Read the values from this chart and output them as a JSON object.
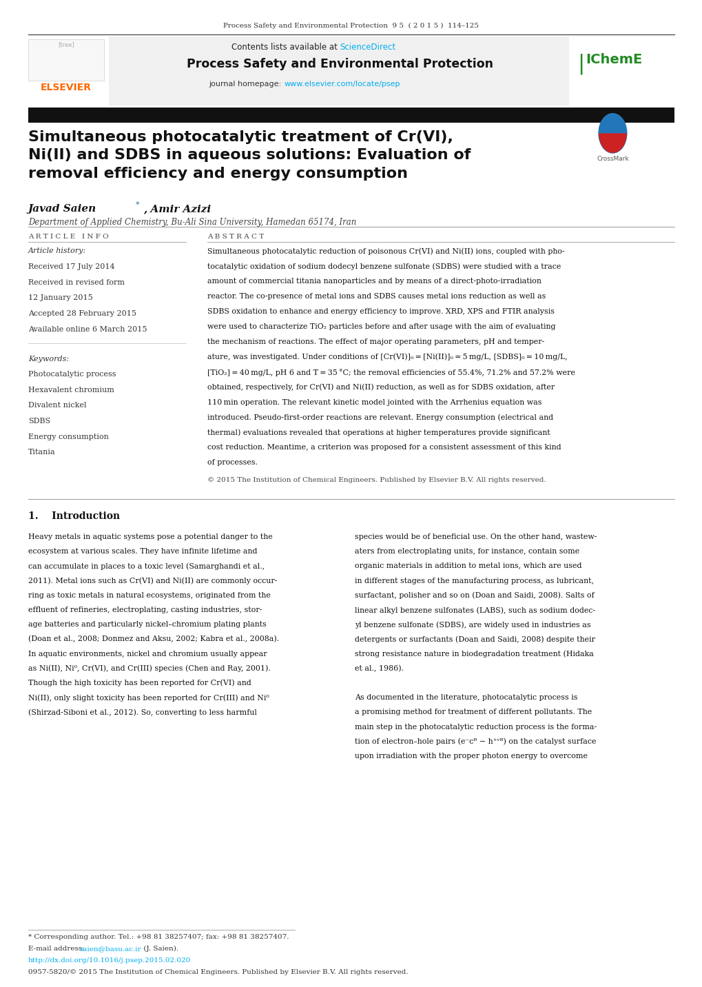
{
  "page_width": 10.2,
  "page_height": 14.32,
  "bg_color": "#ffffff",
  "journal_header": "Process Safety and Environmental Protection  9 5  ( 2 0 1 5 )  114–125",
  "science_direct": "ScienceDirect",
  "journal_name": "Process Safety and Environmental Protection",
  "journal_url": "www.elsevier.com/locate/psep",
  "elsevier_color": "#FF6600",
  "elsevier_text": "ELSEVIER",
  "scidir_color": "#00AEEF",
  "icheme_color": "#228B22",
  "paper_title": "Simultaneous photocatalytic treatment of Cr(VI),\nNi(II) and SDBS in aqueous solutions: Evaluation of\nremoval efficiency and energy consumption",
  "article_info_header": "A R T I C L E   I N F O",
  "abstract_header": "A B S T R A C T",
  "article_history_label": "Article history:",
  "history_items": [
    "Received 17 July 2014",
    "Received in revised form",
    "12 January 2015",
    "Accepted 28 February 2015",
    "Available online 6 March 2015"
  ],
  "keywords_label": "Keywords:",
  "keywords": [
    "Photocatalytic process",
    "Hexavalent chromium",
    "Divalent nickel",
    "SDBS",
    "Energy consumption",
    "Titania"
  ],
  "abstract_lines": [
    "Simultaneous photocatalytic reduction of poisonous Cr(VI) and Ni(II) ions, coupled with pho-",
    "tocatalytic oxidation of sodium dodecyl benzene sulfonate (SDBS) were studied with a trace",
    "amount of commercial titania nanoparticles and by means of a direct-photo-irradiation",
    "reactor. The co-presence of metal ions and SDBS causes metal ions reduction as well as",
    "SDBS oxidation to enhance and energy efficiency to improve. XRD, XPS and FTIR analysis",
    "were used to characterize TiO₂ particles before and after usage with the aim of evaluating",
    "the mechanism of reactions. The effect of major operating parameters, pH and temper-",
    "ature, was investigated. Under conditions of [Cr(VI)]₀ = [Ni(II)]₀ = 5 mg/L, [SDBS]₀ = 10 mg/L,",
    "[TiO₂] = 40 mg/L, pH 6 and T = 35 °C; the removal efficiencies of 55.4%, 71.2% and 57.2% were",
    "obtained, respectively, for Cr(VI) and Ni(II) reduction, as well as for SDBS oxidation, after",
    "110 min operation. The relevant kinetic model jointed with the Arrhenius equation was",
    "introduced. Pseudo-first-order reactions are relevant. Energy consumption (electrical and",
    "thermal) evaluations revealed that operations at higher temperatures provide significant",
    "cost reduction. Meantime, a criterion was proposed for a consistent assessment of this kind",
    "of processes."
  ],
  "copyright_text": "© 2015 The Institution of Chemical Engineers. Published by Elsevier B.V. All rights reserved.",
  "intro_heading": "1.    Introduction",
  "intro_col1_lines": [
    "Heavy metals in aquatic systems pose a potential danger to the",
    "ecosystem at various scales. They have infinite lifetime and",
    "can accumulate in places to a toxic level (Samarghandi et al.,",
    "2011). Metal ions such as Cr(VI) and Ni(II) are commonly occur-",
    "ring as toxic metals in natural ecosystems, originated from the",
    "effluent of refineries, electroplating, casting industries, stor-",
    "age batteries and particularly nickel–chromium plating plants",
    "(Doan et al., 2008; Donmez and Aksu, 2002; Kabra et al., 2008a).",
    "In aquatic environments, nickel and chromium usually appear",
    "as Ni(II), Ni⁰, Cr(VI), and Cr(III) species (Chen and Ray, 2001).",
    "Though the high toxicity has been reported for Cr(VI) and",
    "Ni(II), only slight toxicity has been reported for Cr(III) and Ni⁰",
    "(Shirzad-Siboni et al., 2012). So, converting to less harmful"
  ],
  "intro_col2_lines": [
    "species would be of beneficial use. On the other hand, wastew-",
    "aters from electroplating units, for instance, contain some",
    "organic materials in addition to metal ions, which are used",
    "in different stages of the manufacturing process, as lubricant,",
    "surfactant, polisher and so on (Doan and Saidi, 2008). Salts of",
    "linear alkyl benzene sulfonates (LABS), such as sodium dodec-",
    "yl benzene sulfonate (SDBS), are widely used in industries as",
    "detergents or surfactants (Doan and Saidi, 2008) despite their",
    "strong resistance nature in biodegradation treatment (Hidaka",
    "et al., 1986).",
    "",
    "As documented in the literature, photocatalytic process is",
    "a promising method for treatment of different pollutants. The",
    "main step in the photocatalytic reduction process is the forma-",
    "tion of electron–hole pairs (e⁻ᴄᴮ − h⁺ᵛᴮ) on the catalyst surface",
    "upon irradiation with the proper photon energy to overcome"
  ],
  "footnote_star": "* Corresponding author. Tel.: +98 81 38257407; fax: +98 81 38257407.",
  "footnote_email_label": "E-mail address: ",
  "footnote_email": "saien@basu.ac.ir",
  "footnote_email_suffix": " (J. Saien).",
  "footnote_doi": "http://dx.doi.org/10.1016/j.psep.2015.02.020",
  "footnote_issn": "0957-5820/© 2015 The Institution of Chemical Engineers. Published by Elsevier B.V. All rights reserved."
}
